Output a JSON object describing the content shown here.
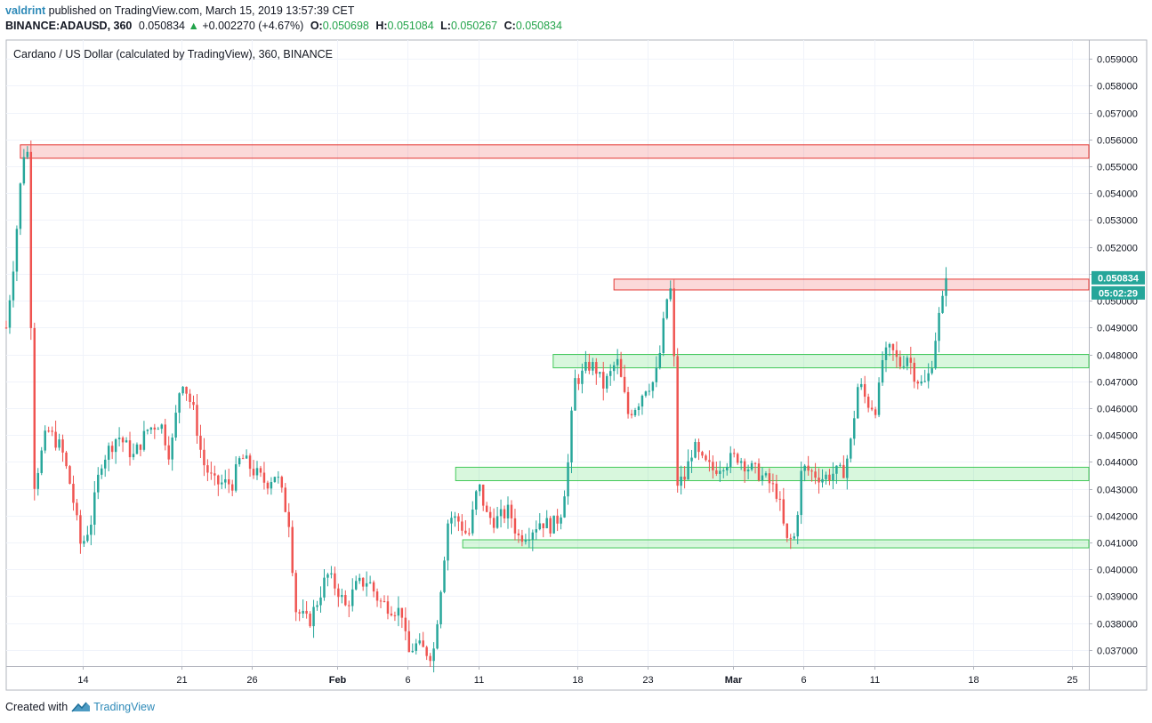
{
  "header": {
    "author": "valdrint",
    "published_text": "published on TradingView.com, March 15, 2019 13:57:39 CET",
    "symbol": "BINANCE:ADAUSD, 360",
    "last": "0.050834",
    "change_arrow": "▲",
    "change": "+0.002270 (+4.67%)",
    "o_label": "O:",
    "o_value": "0.050698",
    "h_label": "H:",
    "h_value": "0.051084",
    "l_label": "L:",
    "l_value": "0.050267",
    "c_label": "C:",
    "c_value": "0.050834"
  },
  "footer": {
    "created_with": "Created with",
    "brand": "TradingView"
  },
  "chart_data": {
    "type": "candlestick",
    "title": "Cardano / US Dollar (calculated by TradingView), 360, BINANCE",
    "ylim": [
      0.0364,
      0.0597
    ],
    "y_ticks": [
      "0.059000",
      "0.058000",
      "0.057000",
      "0.056000",
      "0.055000",
      "0.054000",
      "0.053000",
      "0.052000",
      "0.051000",
      "0.050000",
      "0.049000",
      "0.048000",
      "0.047000",
      "0.046000",
      "0.045000",
      "0.044000",
      "0.043000",
      "0.042000",
      "0.041000",
      "0.040000",
      "0.039000",
      "0.038000",
      "0.037000"
    ],
    "y_tick_values": [
      0.059,
      0.058,
      0.057,
      0.056,
      0.055,
      0.054,
      0.053,
      0.052,
      0.051,
      0.05,
      0.049,
      0.048,
      0.047,
      0.046,
      0.045,
      0.044,
      0.043,
      0.042,
      0.041,
      0.04,
      0.039,
      0.038,
      0.037
    ],
    "x_ticks": [
      {
        "label": "14",
        "day": 14,
        "bold": false
      },
      {
        "label": "21",
        "day": 21,
        "bold": false
      },
      {
        "label": "26",
        "day": 26,
        "bold": false
      },
      {
        "label": "Feb",
        "day": 32,
        "bold": true
      },
      {
        "label": "6",
        "day": 37,
        "bold": false
      },
      {
        "label": "11",
        "day": 42,
        "bold": false
      },
      {
        "label": "18",
        "day": 49,
        "bold": false
      },
      {
        "label": "23",
        "day": 54,
        "bold": false
      },
      {
        "label": "Mar",
        "day": 60,
        "bold": true
      },
      {
        "label": "6",
        "day": 65,
        "bold": false
      },
      {
        "label": "11",
        "day": 70,
        "bold": false
      },
      {
        "label": "18",
        "day": 77,
        "bold": false
      },
      {
        "label": "25",
        "day": 84,
        "bold": false
      }
    ],
    "x_domain_days": [
      8.6,
      85.2
    ],
    "candles_per_day": 4,
    "price_label": "0.050834",
    "countdown_label": "05:02:29",
    "up_color": "#26a69a",
    "down_color": "#ef5350",
    "zones": [
      {
        "kind": "resistance",
        "low": 0.0553,
        "high": 0.0558,
        "start_day": 9.6,
        "end_day": 85.2
      },
      {
        "kind": "resistance",
        "low": 0.0504,
        "high": 0.0508,
        "start_day": 51.6,
        "end_day": 85.2
      },
      {
        "kind": "support",
        "low": 0.0475,
        "high": 0.048,
        "start_day": 47.3,
        "end_day": 85.2
      },
      {
        "kind": "support",
        "low": 0.0433,
        "high": 0.0438,
        "start_day": 40.4,
        "end_day": 85.2
      },
      {
        "kind": "support",
        "low": 0.0408,
        "high": 0.0411,
        "start_day": 40.9,
        "end_day": 85.2
      }
    ],
    "anchors": [
      [
        8.6,
        0.049
      ],
      [
        9.2,
        0.0518
      ],
      [
        9.8,
        0.0555
      ],
      [
        10.2,
        0.0555
      ],
      [
        10.5,
        0.043
      ],
      [
        11.5,
        0.0452
      ],
      [
        12.5,
        0.0445
      ],
      [
        13.2,
        0.043
      ],
      [
        13.9,
        0.0408
      ],
      [
        14.6,
        0.0418
      ],
      [
        15.3,
        0.044
      ],
      [
        16.5,
        0.045
      ],
      [
        17.6,
        0.0442
      ],
      [
        18.6,
        0.0452
      ],
      [
        19.5,
        0.0455
      ],
      [
        20.2,
        0.0442
      ],
      [
        21.0,
        0.0472
      ],
      [
        21.9,
        0.0458
      ],
      [
        22.5,
        0.044
      ],
      [
        23.3,
        0.0432
      ],
      [
        24.6,
        0.0432
      ],
      [
        25.2,
        0.0442
      ],
      [
        26.2,
        0.0436
      ],
      [
        27.0,
        0.0432
      ],
      [
        27.7,
        0.0436
      ],
      [
        28.6,
        0.0418
      ],
      [
        29.1,
        0.0385
      ],
      [
        30.0,
        0.038
      ],
      [
        30.6,
        0.0388
      ],
      [
        31.3,
        0.0398
      ],
      [
        32.1,
        0.0392
      ],
      [
        32.6,
        0.0386
      ],
      [
        33.4,
        0.0394
      ],
      [
        34.2,
        0.0396
      ],
      [
        35.0,
        0.0388
      ],
      [
        35.8,
        0.0386
      ],
      [
        36.6,
        0.0384
      ],
      [
        37.0,
        0.0368
      ],
      [
        37.5,
        0.0372
      ],
      [
        38.1,
        0.037
      ],
      [
        38.8,
        0.0368
      ],
      [
        39.4,
        0.0396
      ],
      [
        39.9,
        0.042
      ],
      [
        40.6,
        0.0418
      ],
      [
        41.3,
        0.0412
      ],
      [
        42.0,
        0.0432
      ],
      [
        42.6,
        0.042
      ],
      [
        43.2,
        0.0418
      ],
      [
        44.2,
        0.0422
      ],
      [
        44.8,
        0.0412
      ],
      [
        45.6,
        0.0414
      ],
      [
        46.4,
        0.0418
      ],
      [
        47.2,
        0.0416
      ],
      [
        47.8,
        0.042
      ],
      [
        48.3,
        0.0436
      ],
      [
        48.8,
        0.047
      ],
      [
        49.3,
        0.0472
      ],
      [
        49.8,
        0.0476
      ],
      [
        50.3,
        0.0475
      ],
      [
        50.8,
        0.0468
      ],
      [
        51.3,
        0.0472
      ],
      [
        51.8,
        0.0478
      ],
      [
        52.6,
        0.0458
      ],
      [
        53.3,
        0.0462
      ],
      [
        53.8,
        0.0468
      ],
      [
        54.5,
        0.047
      ],
      [
        54.9,
        0.0482
      ],
      [
        55.3,
        0.05
      ],
      [
        55.7,
        0.0505
      ],
      [
        56.1,
        0.0432
      ],
      [
        56.6,
        0.0434
      ],
      [
        57.2,
        0.0446
      ],
      [
        57.8,
        0.044
      ],
      [
        58.6,
        0.0437
      ],
      [
        59.4,
        0.044
      ],
      [
        60.4,
        0.0442
      ],
      [
        61.1,
        0.0438
      ],
      [
        61.8,
        0.0436
      ],
      [
        62.6,
        0.0432
      ],
      [
        63.2,
        0.0428
      ],
      [
        63.8,
        0.041
      ],
      [
        64.4,
        0.0412
      ],
      [
        64.9,
        0.0438
      ],
      [
        65.6,
        0.0436
      ],
      [
        66.4,
        0.0434
      ],
      [
        67.2,
        0.0436
      ],
      [
        67.8,
        0.0436
      ],
      [
        68.3,
        0.0445
      ],
      [
        68.9,
        0.047
      ],
      [
        69.5,
        0.0462
      ],
      [
        70.2,
        0.046
      ],
      [
        70.6,
        0.0478
      ],
      [
        71.2,
        0.0482
      ],
      [
        71.8,
        0.0476
      ],
      [
        72.4,
        0.048
      ],
      [
        72.9,
        0.0472
      ],
      [
        73.5,
        0.0468
      ],
      [
        74.0,
        0.0474
      ],
      [
        74.3,
        0.0485
      ],
      [
        74.6,
        0.0494
      ],
      [
        75.1,
        0.0505
      ],
      [
        75.3,
        0.0508
      ]
    ]
  }
}
